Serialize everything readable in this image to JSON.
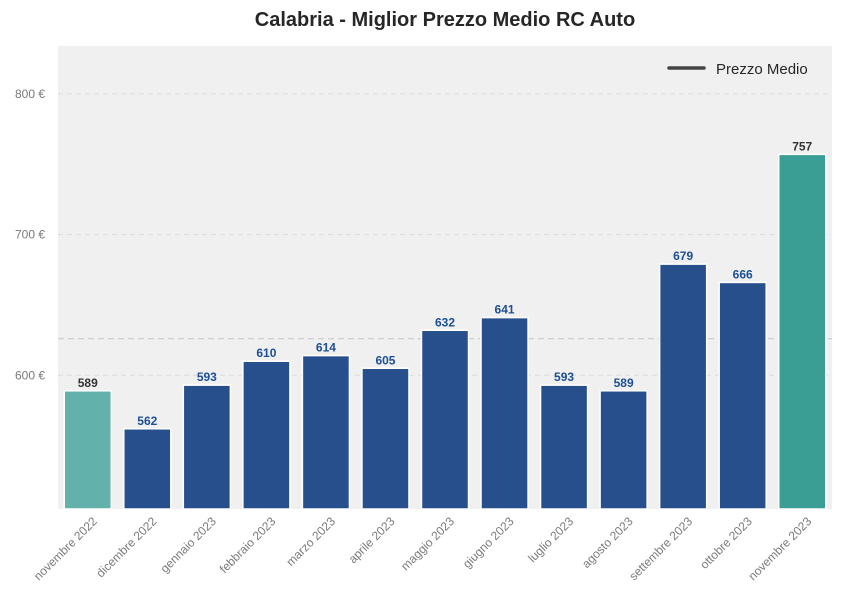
{
  "chart_data": {
    "type": "bar",
    "title": "Calabria - Miglior Prezzo Medio RC Auto",
    "xlabel": "",
    "ylabel": "",
    "categories": [
      "novembre 2022",
      "dicembre 2022",
      "gennaio 2023",
      "febbraio 2023",
      "marzo 2023",
      "aprile 2023",
      "maggio 2023",
      "giugno 2023",
      "luglio 2023",
      "agosto 2023",
      "settembre 2023",
      "ottobre 2023",
      "novembre 2023"
    ],
    "values": [
      589,
      562,
      593,
      610,
      614,
      605,
      632,
      641,
      593,
      589,
      679,
      666,
      757
    ],
    "ylim": [
      505,
      834
    ],
    "yticks": [
      600,
      700,
      800
    ],
    "ytick_labels": [
      "600 €",
      "700 €",
      "800 €"
    ],
    "mean_line": 626,
    "legend": {
      "label": "Prezzo Medio",
      "placement": "top-right"
    },
    "grid": true,
    "colors": {
      "default": "#264f8c",
      "first": "#62b2ab",
      "last": "#3a9e95",
      "label_default": "#1c4f94",
      "label_highlight": "#333333",
      "background": "#f0f0f0",
      "mean_line": "#c4c4c4"
    }
  }
}
